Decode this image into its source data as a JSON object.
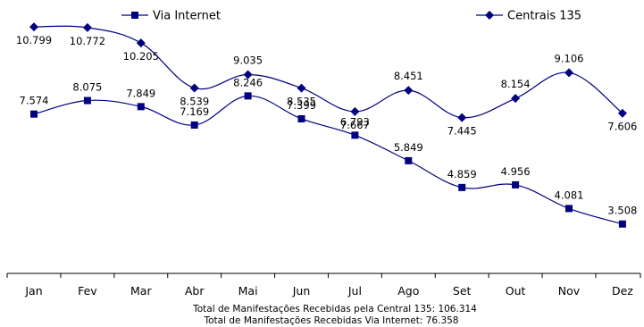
{
  "chart_data": {
    "type": "line",
    "categories": [
      "Jan",
      "Fev",
      "Mar",
      "Abr",
      "Mai",
      "Jun",
      "Jul",
      "Ago",
      "Set",
      "Out",
      "Nov",
      "Dez"
    ],
    "series": [
      {
        "name": "Centrais 135",
        "values": [
          10799,
          10772,
          10205,
          8539,
          9035,
          8535,
          7667,
          8451,
          7445,
          8154,
          9106,
          7606
        ],
        "labels": [
          "10.799",
          "10.772",
          "10.205",
          "8.539",
          "9.035",
          "8.535",
          "7.667",
          "8.451",
          "7.445",
          "8.154",
          "9.106",
          "7.606"
        ],
        "marker": "diamond",
        "color": "#000080"
      },
      {
        "name": "Via Internet",
        "values": [
          7574,
          8075,
          7849,
          7169,
          8246,
          7399,
          6793,
          5849,
          4859,
          4956,
          4081,
          3508
        ],
        "labels": [
          "7.574",
          "8.075",
          "7.849",
          "7.169",
          "8.246",
          "7.399",
          "6.793",
          "5.849",
          "4.859",
          "4.956",
          "4.081",
          "3.508"
        ],
        "marker": "square",
        "color": "#000080"
      }
    ],
    "legend_placement": "top",
    "grid": false,
    "footnotes": [
      "Total de Manifestações Recebidas pela Central 135: 106.314",
      "Total de Manifestações Recebidas Via Internet: 76.358"
    ]
  }
}
